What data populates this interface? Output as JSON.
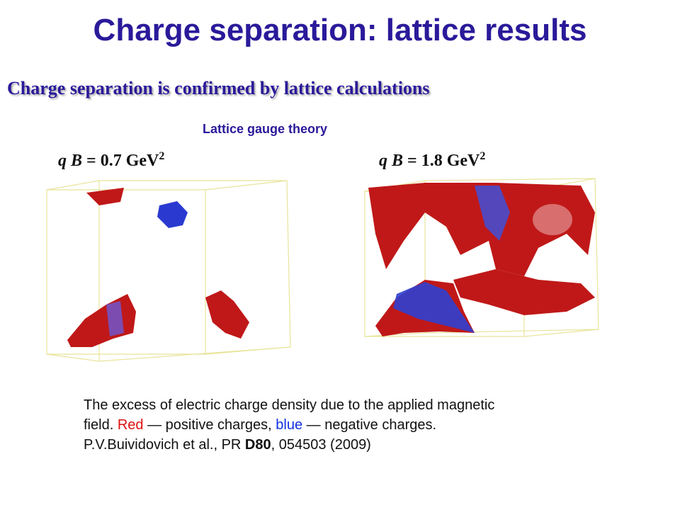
{
  "header": {
    "title": "Charge separation: lattice results",
    "subtitle": "Charge separation is confirmed by lattice calculations"
  },
  "figure": {
    "label": "Lattice gauge theory",
    "panels": [
      {
        "q": "q",
        "b": "B",
        "rest": "= 0.7 GeV",
        "power": "2"
      },
      {
        "q": "q",
        "b": "B",
        "rest": "= 1.8 GeV",
        "power": "2"
      }
    ]
  },
  "caption": {
    "line1": "The excess of electric charge density due to the applied magnetic",
    "line2": [
      "field. ",
      "Red",
      " — positive charges, ",
      "blue",
      " — negative charges."
    ],
    "line3": [
      "P.V.Buividovich et al., PR ",
      "D80",
      ", 054503 (2009)"
    ]
  }
}
